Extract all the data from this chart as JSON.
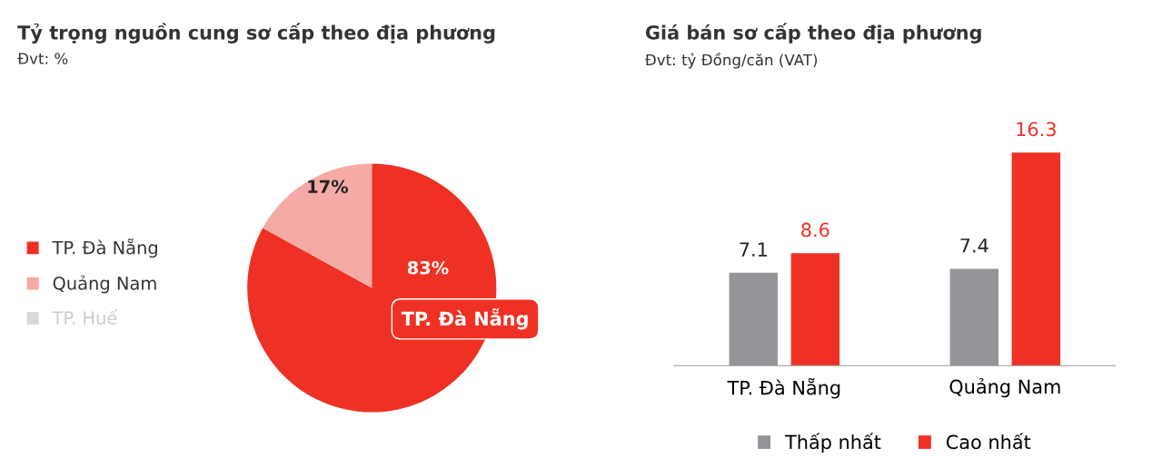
{
  "chart_data": [
    {
      "type": "pie",
      "title": "Tỷ trọng nguồn cung sơ cấp theo địa phương",
      "subtitle": "Đvt: %",
      "categories": [
        "TP. Đà Nẵng",
        "Quảng Nam",
        "TP. Huế"
      ],
      "values": [
        83,
        17,
        null
      ],
      "colors": [
        "#ee3124",
        "#f5aaa5",
        "#d9d9d9"
      ],
      "value_labels": [
        "83%",
        "17%",
        null
      ],
      "legend": "left",
      "annotations": [
        "TP. Đà Nẵng"
      ]
    },
    {
      "type": "bar",
      "title": "Giá bán sơ cấp theo địa phương",
      "subtitle": "Đvt: tỷ Đồng/căn (VAT)",
      "categories": [
        "TP. Đà Nẵng",
        "Quảng Nam"
      ],
      "series": [
        {
          "name": "Thấp nhất",
          "color": "#939598",
          "values": [
            7.1,
            7.4
          ]
        },
        {
          "name": "Cao nhất",
          "color": "#ee3124",
          "values": [
            8.6,
            16.3
          ]
        }
      ],
      "data_labels": true,
      "legend": "bottom",
      "grid": false
    }
  ]
}
